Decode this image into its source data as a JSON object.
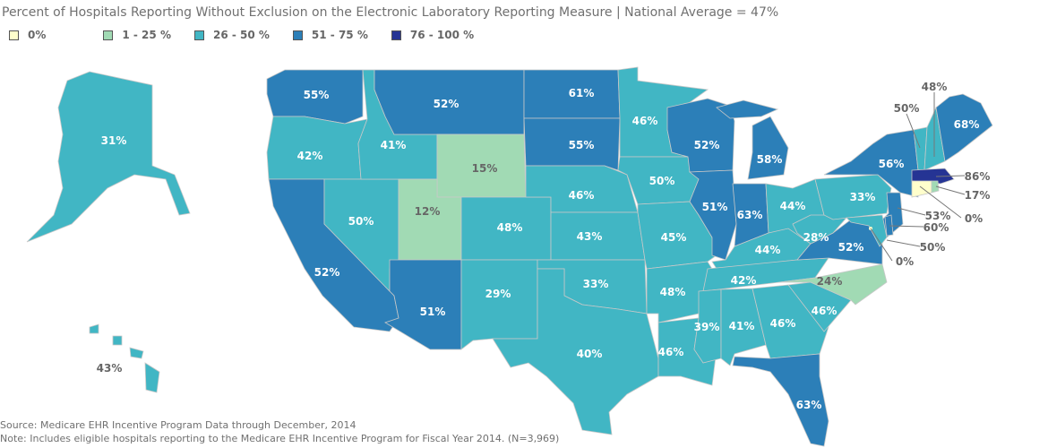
{
  "title": "Percent of Hospitals Reporting Without Exclusion on the Electronic Laboratory Reporting Measure | National Average = 47%",
  "legend": [
    {
      "label": "0%",
      "color": "#ffffcc"
    },
    {
      "label": "1 - 25 %",
      "color": "#a1dab4"
    },
    {
      "label": "26 - 50 %",
      "color": "#41b6c4"
    },
    {
      "label": "51 - 75 %",
      "color": "#2c7fb8"
    },
    {
      "label": "76 - 100 %",
      "color": "#253494"
    }
  ],
  "states": {
    "WA": {
      "value": "55%",
      "bin": 3
    },
    "OR": {
      "value": "42%",
      "bin": 2
    },
    "CA": {
      "value": "52%",
      "bin": 3
    },
    "NV": {
      "value": "50%",
      "bin": 2
    },
    "ID": {
      "value": "41%",
      "bin": 2
    },
    "MT": {
      "value": "52%",
      "bin": 3
    },
    "WY": {
      "value": "15%",
      "bin": 1
    },
    "UT": {
      "value": "12%",
      "bin": 1
    },
    "AZ": {
      "value": "51%",
      "bin": 3
    },
    "CO": {
      "value": "48%",
      "bin": 2
    },
    "NM": {
      "value": "29%",
      "bin": 2
    },
    "ND": {
      "value": "61%",
      "bin": 3
    },
    "SD": {
      "value": "55%",
      "bin": 3
    },
    "NE": {
      "value": "46%",
      "bin": 2
    },
    "KS": {
      "value": "43%",
      "bin": 2
    },
    "OK": {
      "value": "33%",
      "bin": 2
    },
    "TX": {
      "value": "40%",
      "bin": 2
    },
    "MN": {
      "value": "46%",
      "bin": 2
    },
    "IA": {
      "value": "50%",
      "bin": 2
    },
    "MO": {
      "value": "45%",
      "bin": 2
    },
    "AR": {
      "value": "48%",
      "bin": 2
    },
    "LA": {
      "value": "46%",
      "bin": 2
    },
    "WI": {
      "value": "52%",
      "bin": 3
    },
    "IL": {
      "value": "51%",
      "bin": 3
    },
    "MI": {
      "value": "58%",
      "bin": 3
    },
    "IN": {
      "value": "63%",
      "bin": 3
    },
    "OH": {
      "value": "44%",
      "bin": 2
    },
    "KY": {
      "value": "44%",
      "bin": 2
    },
    "TN": {
      "value": "42%",
      "bin": 2
    },
    "MS": {
      "value": "39%",
      "bin": 2
    },
    "AL": {
      "value": "41%",
      "bin": 2
    },
    "GA": {
      "value": "46%",
      "bin": 2
    },
    "FL": {
      "value": "63%",
      "bin": 3
    },
    "SC": {
      "value": "46%",
      "bin": 2
    },
    "NC": {
      "value": "24%",
      "bin": 1
    },
    "VA": {
      "value": "52%",
      "bin": 3
    },
    "WV": {
      "value": "28%",
      "bin": 2
    },
    "PA": {
      "value": "33%",
      "bin": 2
    },
    "NY": {
      "value": "56%",
      "bin": 3
    },
    "NJ": {
      "value": "53%",
      "bin": 3
    },
    "DE": {
      "value": "60%",
      "bin": 3
    },
    "MD": {
      "value": "50%",
      "bin": 2
    },
    "DC": {
      "value": "0%",
      "bin": 0
    },
    "VT": {
      "value": "50%",
      "bin": 2
    },
    "NH": {
      "value": "48%",
      "bin": 2
    },
    "ME": {
      "value": "68%",
      "bin": 3
    },
    "MA": {
      "value": "86%",
      "bin": 4
    },
    "CT": {
      "value": "0%",
      "bin": 0
    },
    "RI": {
      "value": "17%",
      "bin": 1
    },
    "AK": {
      "value": "31%",
      "bin": 2
    },
    "HI": {
      "value": "43%",
      "bin": 2
    }
  },
  "footer": {
    "source": "Source: Medicare EHR Incentive Program Data through December, 2014",
    "note": "Note: Includes eligible hospitals reporting to the Medicare EHR Incentive Program for Fiscal Year 2014. (N=3,969)"
  }
}
